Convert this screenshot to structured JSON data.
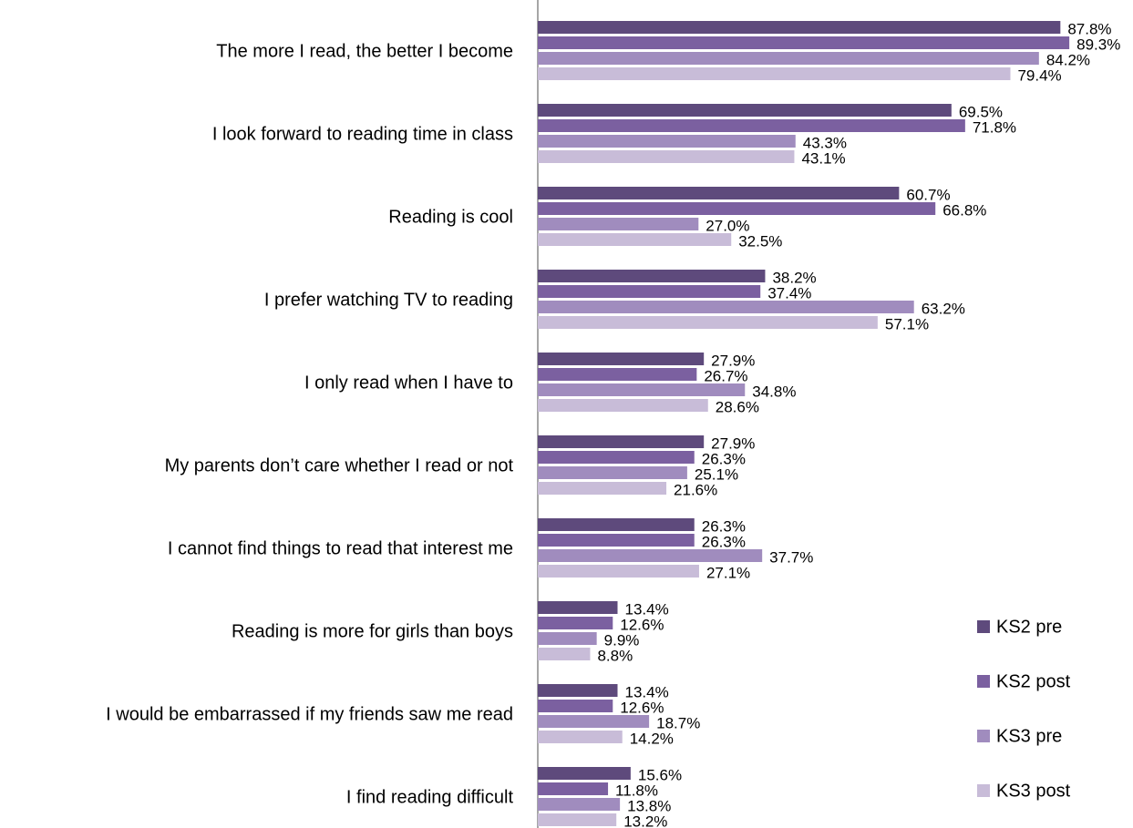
{
  "chart_data": {
    "type": "bar",
    "orientation": "horizontal",
    "categories": [
      "The more I read, the better I become",
      "I look forward to reading time in class",
      "Reading is cool",
      "I prefer watching TV to reading",
      "I only read when I have to",
      "My parents don’t care whether I read or not",
      "I cannot find things to read that interest me",
      "Reading is more for girls than boys",
      "I would be embarrassed if my friends saw me read",
      "I find reading difficult"
    ],
    "series": [
      {
        "name": "KS2 pre",
        "color": "#5e4a7c",
        "values": [
          87.8,
          69.5,
          60.7,
          38.2,
          27.9,
          27.9,
          26.3,
          13.4,
          13.4,
          15.6
        ],
        "value_labels": [
          "87.8%",
          "69.5%",
          "60.7%",
          "38.2%",
          "27.9%",
          "27.9%",
          "26.3%",
          "13.4%",
          "13.4%",
          "15.6%"
        ]
      },
      {
        "name": "KS2 post",
        "color": "#7b60a0",
        "values": [
          89.3,
          71.8,
          66.8,
          37.4,
          26.7,
          26.3,
          26.3,
          12.6,
          12.6,
          11.8
        ],
        "value_labels": [
          "89.3%",
          "71.8%",
          "66.8%",
          "37.4%",
          "26.7%",
          "26.3%",
          "26.3%",
          "12.6%",
          "12.6%",
          "11.8%"
        ]
      },
      {
        "name": "KS3 pre",
        "color": "#a08cbe",
        "values": [
          84.2,
          43.3,
          27.0,
          63.2,
          34.8,
          25.1,
          37.7,
          9.9,
          18.7,
          13.8
        ],
        "value_labels": [
          "84.2%",
          "43.3%",
          "27.0%",
          "63.2%",
          "34.8%",
          "25.1%",
          "37.7%",
          "9.9%",
          "18.7%",
          "13.8%"
        ]
      },
      {
        "name": "KS3 post",
        "color": "#c8bcd8",
        "values": [
          79.4,
          43.1,
          32.5,
          57.1,
          28.6,
          21.6,
          27.1,
          8.8,
          14.2,
          13.2
        ],
        "value_labels": [
          "79.4%",
          "43.1%",
          "32.5%",
          "57.1%",
          "28.6%",
          "21.6%",
          "27.1%",
          "8.8%",
          "14.2%",
          "13.2%"
        ]
      }
    ],
    "xlim": [
      0,
      100
    ],
    "legend": "right"
  }
}
